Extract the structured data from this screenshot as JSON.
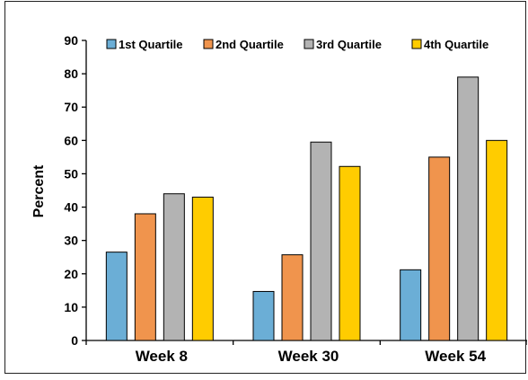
{
  "chart_data": {
    "type": "bar",
    "title": "",
    "xlabel": "",
    "ylabel": "Percent",
    "ylim": [
      0,
      90
    ],
    "yticks": [
      0,
      10,
      20,
      30,
      40,
      50,
      60,
      70,
      80,
      90
    ],
    "grid": false,
    "legend_position": "top",
    "categories": [
      "Week 8",
      "Week 30",
      "Week 54"
    ],
    "series": [
      {
        "name": "1st Quartile",
        "color": "#6baed6",
        "values": [
          26.5,
          14.7,
          21.2
        ]
      },
      {
        "name": "2nd Quartile",
        "color": "#f0944d",
        "values": [
          38,
          25.7,
          55
        ]
      },
      {
        "name": "3rd Quartile",
        "color": "#b3b3b3",
        "values": [
          44,
          59.5,
          79
        ]
      },
      {
        "name": "4th Quartile",
        "color": "#ffcc00",
        "values": [
          43,
          52.2,
          60
        ]
      }
    ]
  }
}
